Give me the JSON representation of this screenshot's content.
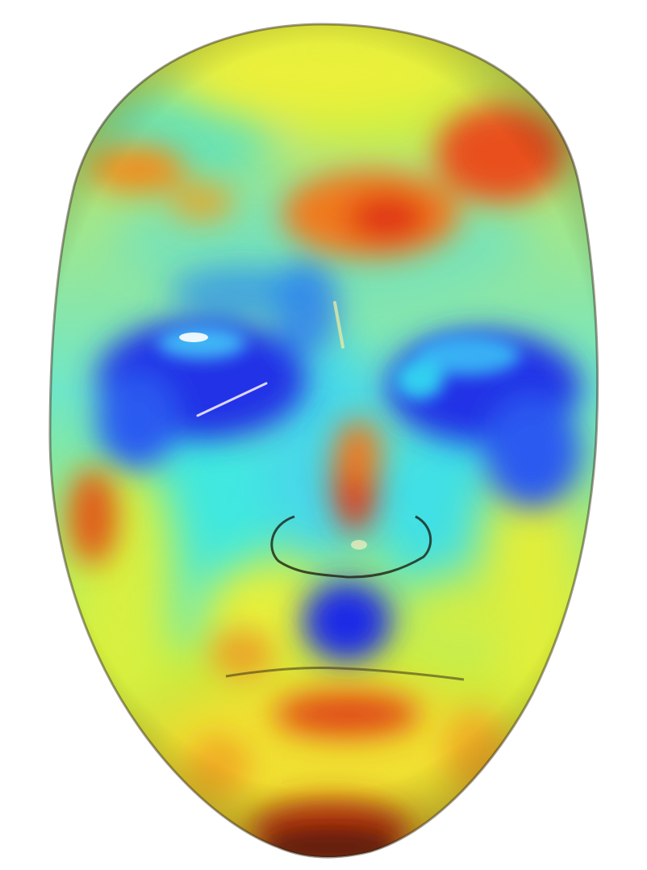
{
  "scene": {
    "background_color": "#ffffff",
    "subject": "3d-face-mesh-heatmap",
    "colormap": "jet",
    "colormap_colors": [
      "#1a1ae6",
      "#1e90ff",
      "#33e6e6",
      "#b4f03c",
      "#f0f02a",
      "#f7a21e",
      "#e03a14",
      "#7a1e10"
    ],
    "outline_color": "#3a2a1a"
  }
}
